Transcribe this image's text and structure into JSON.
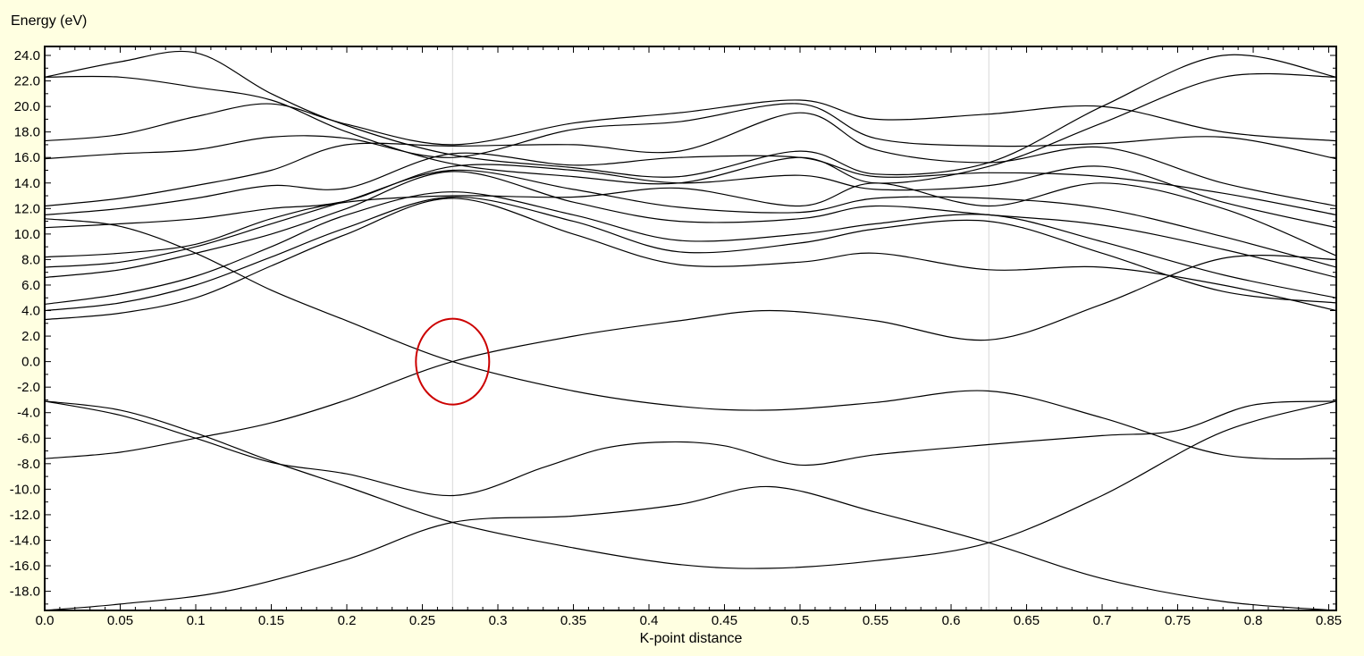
{
  "chart_data": {
    "type": "line",
    "title": "Energy (eV)",
    "xlabel": "K-point distance",
    "ylabel": "Energy (eV)",
    "xlim": [
      0,
      0.855
    ],
    "ylim": [
      -19.5,
      24.7
    ],
    "x_ticks": [
      0.0,
      0.05,
      0.1,
      0.15,
      0.2,
      0.25,
      0.3,
      0.35,
      0.4,
      0.45,
      0.5,
      0.55,
      0.6,
      0.65,
      0.7,
      0.75,
      0.8,
      0.85
    ],
    "x_tick_labels": [
      "0.0",
      "0.05",
      "0.1",
      "0.15",
      "0.2",
      "0.25",
      "0.3",
      "0.35",
      "0.4",
      "0.45",
      "0.5",
      "0.55",
      "0.6",
      "0.65",
      "0.7",
      "0.75",
      "0.8",
      "0.85"
    ],
    "y_ticks": [
      24,
      22,
      20,
      18,
      16,
      14,
      12,
      10,
      8,
      6,
      4,
      2,
      0,
      -2,
      -4,
      -6,
      -8,
      -10,
      -12,
      -14,
      -16,
      -18
    ],
    "y_tick_labels": [
      "24.0",
      "22.0",
      "20.0",
      "18.0",
      "16.0",
      "14.0",
      "12.0",
      "10.0",
      "8.0",
      "6.0",
      "4.0",
      "2.0",
      "0.0",
      "-2.0",
      "-4.0",
      "-6.0",
      "-8.0",
      "-10.0",
      "-12.0",
      "-14.0",
      "-16.0",
      "-18.0"
    ],
    "high_symmetry_x": [
      0.27,
      0.625
    ],
    "grid": false,
    "line_color": "#000000",
    "annotation": {
      "type": "ellipse",
      "x": 0.27,
      "y": 0.0,
      "color": "#CC0000"
    },
    "series": [
      {
        "x": [
          0,
          0.05,
          0.12,
          0.2,
          0.27,
          0.35,
          0.42,
          0.48,
          0.55,
          0.625,
          0.7,
          0.78,
          0.855
        ],
        "values": [
          -19.5,
          -19.0,
          -18.0,
          -15.5,
          -12.6,
          -12.1,
          -11.2,
          -9.8,
          -11.8,
          -14.2,
          -17.0,
          -18.8,
          -19.5
        ]
      },
      {
        "x": [
          0,
          0.05,
          0.1,
          0.15,
          0.2,
          0.27,
          0.35,
          0.42,
          0.48,
          0.55,
          0.625,
          0.7,
          0.78,
          0.855
        ],
        "values": [
          -3.1,
          -3.8,
          -5.6,
          -7.8,
          -9.8,
          -12.6,
          -14.6,
          -15.9,
          -16.2,
          -15.6,
          -14.2,
          -10.5,
          -5.5,
          -3.1
        ]
      },
      {
        "x": [
          0,
          0.05,
          0.1,
          0.15,
          0.2,
          0.27,
          0.33,
          0.37,
          0.41,
          0.45,
          0.5,
          0.55,
          0.625,
          0.7,
          0.75,
          0.8,
          0.855
        ],
        "values": [
          -3.1,
          -4.2,
          -6.0,
          -7.9,
          -8.8,
          -10.5,
          -8.3,
          -6.8,
          -6.3,
          -6.6,
          -8.1,
          -7.3,
          -6.5,
          -5.8,
          -5.4,
          -3.4,
          -3.1
        ]
      },
      {
        "x": [
          0,
          0.05,
          0.1,
          0.15,
          0.2,
          0.27,
          0.35,
          0.42,
          0.48,
          0.55,
          0.625,
          0.7,
          0.78,
          0.855
        ],
        "values": [
          -7.6,
          -7.1,
          -6.0,
          -4.8,
          -3.0,
          0.0,
          2.0,
          3.2,
          4.0,
          3.2,
          1.7,
          4.5,
          8.1,
          8.0
        ]
      },
      {
        "x": [
          0,
          0.05,
          0.1,
          0.15,
          0.2,
          0.27,
          0.35,
          0.42,
          0.48,
          0.55,
          0.625,
          0.7,
          0.78,
          0.855
        ],
        "values": [
          11.2,
          10.6,
          8.5,
          5.6,
          3.2,
          0.0,
          -2.3,
          -3.5,
          -3.8,
          -3.2,
          -2.3,
          -4.4,
          -7.3,
          -7.6
        ]
      },
      {
        "x": [
          0,
          0.05,
          0.1,
          0.15,
          0.2,
          0.27,
          0.35,
          0.42,
          0.5,
          0.55,
          0.625,
          0.7,
          0.78,
          0.855
        ],
        "values": [
          3.3,
          3.8,
          5.0,
          7.5,
          10.0,
          12.8,
          10.0,
          7.6,
          7.8,
          8.5,
          7.2,
          7.4,
          6.0,
          4.0
        ]
      },
      {
        "x": [
          0,
          0.05,
          0.1,
          0.15,
          0.2,
          0.27,
          0.35,
          0.42,
          0.5,
          0.55,
          0.625,
          0.7,
          0.78,
          0.855
        ],
        "values": [
          4.0,
          4.6,
          6.0,
          8.2,
          10.5,
          12.9,
          11.0,
          8.6,
          9.3,
          10.4,
          11.0,
          8.5,
          5.5,
          4.6
        ]
      },
      {
        "x": [
          0,
          0.05,
          0.1,
          0.15,
          0.2,
          0.27,
          0.35,
          0.42,
          0.5,
          0.55,
          0.625,
          0.7,
          0.78,
          0.855
        ],
        "values": [
          4.5,
          5.3,
          6.7,
          9.0,
          11.5,
          13.3,
          11.5,
          9.5,
          10.0,
          10.8,
          11.5,
          9.4,
          6.8,
          5.0
        ]
      },
      {
        "x": [
          0,
          0.05,
          0.1,
          0.15,
          0.2,
          0.27,
          0.35,
          0.42,
          0.5,
          0.55,
          0.625,
          0.7,
          0.78,
          0.855
        ],
        "values": [
          6.6,
          7.2,
          8.5,
          10.0,
          12.0,
          14.9,
          12.5,
          11.0,
          11.2,
          12.2,
          11.5,
          10.7,
          8.8,
          6.6
        ]
      },
      {
        "x": [
          0,
          0.05,
          0.1,
          0.15,
          0.2,
          0.27,
          0.35,
          0.42,
          0.5,
          0.55,
          0.625,
          0.7,
          0.78,
          0.855
        ],
        "values": [
          7.4,
          7.8,
          9.0,
          10.8,
          12.6,
          15.0,
          13.5,
          12.1,
          11.7,
          12.8,
          12.8,
          12.0,
          9.8,
          7.4
        ]
      },
      {
        "x": [
          0,
          0.05,
          0.1,
          0.15,
          0.2,
          0.27,
          0.35,
          0.42,
          0.5,
          0.55,
          0.625,
          0.7,
          0.78,
          0.855
        ],
        "values": [
          8.2,
          8.5,
          9.2,
          11.2,
          12.5,
          13.0,
          12.9,
          13.6,
          12.2,
          14.0,
          12.2,
          14.0,
          12.0,
          8.3
        ]
      },
      {
        "x": [
          0,
          0.05,
          0.1,
          0.15,
          0.2,
          0.27,
          0.35,
          0.42,
          0.5,
          0.55,
          0.625,
          0.7,
          0.78,
          0.855
        ],
        "values": [
          10.5,
          10.8,
          11.2,
          12.0,
          12.6,
          15.3,
          15.0,
          14.0,
          14.6,
          13.5,
          13.8,
          15.3,
          12.5,
          10.5
        ]
      },
      {
        "x": [
          0,
          0.05,
          0.1,
          0.15,
          0.2,
          0.27,
          0.35,
          0.42,
          0.5,
          0.55,
          0.625,
          0.7,
          0.78,
          0.855
        ],
        "values": [
          11.5,
          12.0,
          12.8,
          13.8,
          13.6,
          16.3,
          15.4,
          16.0,
          16.0,
          14.5,
          14.8,
          14.5,
          13.2,
          11.5
        ]
      },
      {
        "x": [
          0,
          0.05,
          0.1,
          0.15,
          0.2,
          0.27,
          0.35,
          0.42,
          0.5,
          0.55,
          0.625,
          0.7,
          0.78,
          0.855
        ],
        "values": [
          12.2,
          12.8,
          13.8,
          15.0,
          17.0,
          16.9,
          17.0,
          16.5,
          19.5,
          16.6,
          15.6,
          16.8,
          14.0,
          12.2
        ]
      },
      {
        "x": [
          0,
          0.05,
          0.1,
          0.15,
          0.2,
          0.27,
          0.35,
          0.42,
          0.5,
          0.55,
          0.625,
          0.7,
          0.78,
          0.855
        ],
        "values": [
          15.9,
          16.3,
          16.6,
          17.6,
          17.5,
          16.0,
          18.2,
          18.8,
          20.2,
          17.5,
          16.9,
          17.1,
          17.6,
          15.9
        ]
      },
      {
        "x": [
          0,
          0.05,
          0.1,
          0.15,
          0.2,
          0.27,
          0.35,
          0.42,
          0.5,
          0.55,
          0.625,
          0.7,
          0.78,
          0.855
        ],
        "values": [
          17.3,
          17.8,
          19.2,
          20.2,
          18.6,
          17.0,
          18.7,
          19.5,
          20.5,
          19.0,
          19.4,
          20.0,
          18.0,
          17.3
        ]
      },
      {
        "x": [
          0,
          0.05,
          0.1,
          0.15,
          0.2,
          0.27,
          0.35,
          0.42,
          0.5,
          0.55,
          0.625,
          0.7,
          0.78,
          0.855
        ],
        "values": [
          22.3,
          22.3,
          21.5,
          20.5,
          18.0,
          15.5,
          14.5,
          14.0,
          16.0,
          14.0,
          15.3,
          18.7,
          22.3,
          22.3
        ]
      },
      {
        "x": [
          0,
          0.05,
          0.1,
          0.15,
          0.2,
          0.27,
          0.35,
          0.42,
          0.5,
          0.55,
          0.625,
          0.7,
          0.78,
          0.855
        ],
        "values": [
          22.3,
          23.5,
          24.2,
          21.0,
          18.5,
          16.2,
          15.2,
          14.5,
          16.5,
          14.7,
          15.6,
          20.0,
          24.0,
          22.3
        ]
      }
    ]
  }
}
